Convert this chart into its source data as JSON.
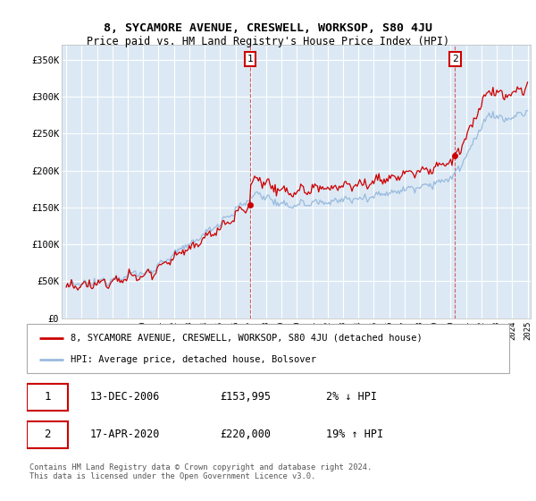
{
  "title": "8, SYCAMORE AVENUE, CRESWELL, WORKSOP, S80 4JU",
  "subtitle": "Price paid vs. HM Land Registry's House Price Index (HPI)",
  "legend_line1": "8, SYCAMORE AVENUE, CRESWELL, WORKSOP, S80 4JU (detached house)",
  "legend_line2": "HPI: Average price, detached house, Bolsover",
  "annotation1_date": "13-DEC-2006",
  "annotation1_price": "£153,995",
  "annotation1_hpi": "2% ↓ HPI",
  "annotation2_date": "17-APR-2020",
  "annotation2_price": "£220,000",
  "annotation2_hpi": "19% ↑ HPI",
  "footer": "Contains HM Land Registry data © Crown copyright and database right 2024.\nThis data is licensed under the Open Government Licence v3.0.",
  "background_color": "#dce9f5",
  "red_color": "#cc0000",
  "blue_color": "#99bbdd",
  "grid_color": "#ffffff",
  "ylim": [
    0,
    370000
  ],
  "yticks": [
    0,
    50000,
    100000,
    150000,
    200000,
    250000,
    300000,
    350000
  ],
  "ytick_labels": [
    "£0",
    "£50K",
    "£100K",
    "£150K",
    "£200K",
    "£250K",
    "£300K",
    "£350K"
  ],
  "xstart_year": 1995,
  "xend_year": 2025,
  "sale1_year": 2006.96,
  "sale1_value": 153995,
  "sale2_year": 2020.29,
  "sale2_value": 220000
}
